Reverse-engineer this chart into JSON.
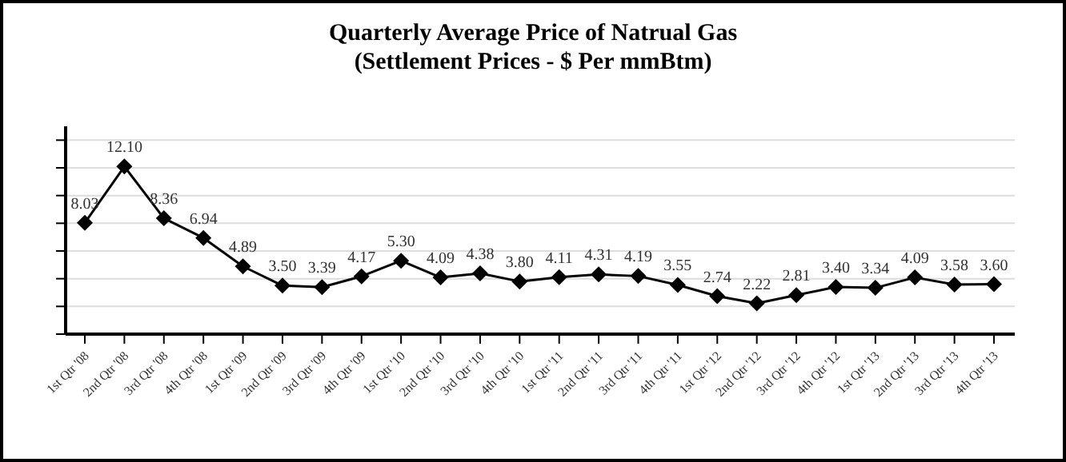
{
  "chart_data": {
    "type": "line",
    "title": "Quarterly Average Price of Natrual Gas",
    "subtitle": "(Settlement Prices - $ Per mmBtm)",
    "categories": [
      "1st Qtr '08",
      "2nd Qtr '08",
      "3rd Qtr '08",
      "4th Qtr '08",
      "1st Qtr '09",
      "2nd Qtr '09",
      "3rd Qtr '09",
      "4th Qtr '09",
      "1st Qtr '10",
      "2nd Qtr '10",
      "3rd Qtr '10",
      "4th Qtr '10",
      "1st Qtr '11",
      "2nd Qtr '11",
      "3rd Qtr '11",
      "4th Qtr '11",
      "1st Qtr '12",
      "2nd Qtr '12",
      "3rd Qtr '12",
      "4th Qtr '12",
      "1st Qtr '13",
      "2nd Qtr '13",
      "3rd Qtr '13",
      "4th Qtr '13"
    ],
    "series": [
      {
        "color": "#000000",
        "values": [
          8.03,
          12.1,
          8.36,
          6.94,
          4.89,
          3.5,
          3.39,
          4.17,
          5.3,
          4.09,
          4.38,
          3.8,
          4.11,
          4.31,
          4.19,
          3.55,
          2.74,
          2.22,
          2.81,
          3.4,
          3.34,
          4.09,
          3.58,
          3.6
        ],
        "value_labels": [
          "8.03",
          "12.10",
          "8.36",
          "6.94",
          "4.89",
          "3.50",
          "3.39",
          "4.17",
          "5.30",
          "4.09",
          "4.38",
          "3.80",
          "4.11",
          "4.31",
          "4.19",
          "3.55",
          "2.74",
          "2.22",
          "2.81",
          "3.40",
          "3.34",
          "4.09",
          "3.58",
          "3.60"
        ]
      }
    ],
    "ylim": [
      0,
      15
    ],
    "yticks": [
      {
        "value": 0,
        "label": null
      },
      {
        "value": 2,
        "label": null
      },
      {
        "value": 4,
        "label": null
      },
      {
        "value": 6,
        "label": null
      },
      {
        "value": 8,
        "label": null
      },
      {
        "value": 10,
        "label": null
      },
      {
        "value": 12,
        "label": null
      },
      {
        "value": 14,
        "label": null
      }
    ],
    "tick_labels": "x",
    "grid": "y",
    "legend": false,
    "marker": "diamond",
    "line_style": "solid"
  }
}
